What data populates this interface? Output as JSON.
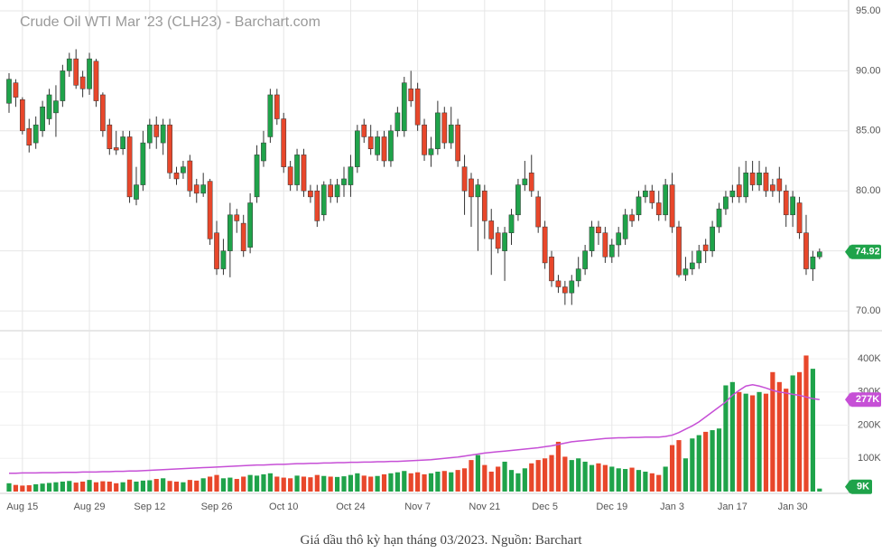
{
  "chart_data": {
    "type": "candlestick",
    "title": "Crude Oil WTI Mar '23 (CLH23) - Barchart.com",
    "categories": [
      null,
      null,
      "Aug 15",
      null,
      null,
      null,
      null,
      null,
      null,
      null,
      null,
      null,
      "Aug 29",
      null,
      null,
      null,
      null,
      null,
      null,
      null,
      null,
      "Sep 12",
      null,
      null,
      null,
      null,
      null,
      null,
      null,
      null,
      null,
      "Sep 26",
      null,
      null,
      null,
      null,
      null,
      null,
      null,
      null,
      null,
      "Oct 10",
      null,
      null,
      null,
      null,
      null,
      null,
      null,
      null,
      null,
      "Oct 24",
      null,
      null,
      null,
      null,
      null,
      null,
      null,
      null,
      null,
      "Nov 7",
      null,
      null,
      null,
      null,
      null,
      null,
      null,
      null,
      null,
      "Nov 21",
      null,
      null,
      null,
      null,
      null,
      null,
      null,
      null,
      "Dec 5",
      null,
      null,
      null,
      null,
      null,
      null,
      null,
      null,
      null,
      "Dec 19",
      null,
      null,
      null,
      null,
      null,
      null,
      null,
      null,
      "Jan 3",
      null,
      null,
      null,
      null,
      null,
      null,
      null,
      null,
      "Jan 17",
      null,
      null,
      null,
      null,
      null,
      null,
      null,
      null,
      "Jan 30",
      null,
      null,
      null,
      null
    ],
    "open": [
      87.3,
      89.0,
      87.6,
      85.2,
      84.0,
      85.0,
      86.0,
      86.5,
      87.5,
      90.0,
      91.0,
      89.5,
      88.5,
      90.8,
      88.0,
      85.5,
      83.6,
      83.5,
      84.5,
      79.3,
      80.5,
      84.0,
      85.5,
      84.0,
      85.5,
      81.5,
      81.5,
      82.5,
      80.5,
      79.8,
      80.8,
      76.5,
      73.5,
      75.0,
      78.0,
      77.3,
      75.3,
      79.5,
      82.5,
      84.5,
      88.0,
      86.0,
      82.0,
      80.5,
      83.0,
      80.0,
      80.0,
      78.0,
      80.5,
      79.5,
      80.5,
      80.5,
      82.0,
      85.5,
      84.5,
      83.0,
      84.5,
      82.5,
      85.0,
      85.0,
      88.5,
      88.5,
      85.5,
      83.0,
      83.5,
      86.5,
      84.0,
      85.5,
      82.0,
      81.0,
      79.5,
      80.0,
      77.5,
      76.5,
      75.0,
      76.5,
      78.0,
      80.5,
      81.5,
      79.5,
      77.0,
      74.5,
      72.5,
      72.0,
      71.5,
      72.5,
      73.5,
      75.0,
      77.0,
      76.5,
      74.5,
      75.5,
      76.0,
      78.0,
      78.0,
      79.5,
      80.0,
      79.0,
      78.0,
      80.5,
      77.0,
      73.0,
      73.5,
      74.0,
      75.5,
      75.0,
      77.0,
      78.5,
      79.5,
      80.5,
      79.5,
      81.5,
      80.5,
      81.5,
      80.5,
      81.0,
      80.0,
      78.0,
      79.0,
      76.5,
      73.5,
      74.5
    ],
    "high": [
      89.8,
      89.3,
      87.8,
      86.0,
      86.2,
      87.5,
      88.5,
      88.8,
      90.5,
      91.5,
      91.8,
      90.0,
      91.5,
      91.0,
      88.2,
      86.0,
      85.0,
      85.0,
      85.0,
      82.0,
      85.0,
      86.0,
      86.2,
      86.0,
      86.0,
      82.0,
      82.5,
      83.0,
      81.0,
      81.5,
      81.0,
      77.5,
      76.0,
      79.0,
      78.5,
      78.0,
      79.8,
      83.8,
      85.0,
      88.5,
      88.5,
      86.5,
      82.5,
      83.5,
      83.5,
      80.5,
      80.5,
      80.8,
      81.0,
      81.0,
      82.0,
      83.0,
      85.5,
      86.0,
      85.5,
      85.0,
      85.0,
      85.5,
      87.0,
      89.5,
      90.0,
      89.0,
      86.0,
      84.5,
      87.5,
      87.0,
      87.0,
      86.0,
      83.0,
      81.5,
      81.0,
      80.5,
      78.5,
      77.0,
      77.0,
      78.5,
      81.0,
      82.5,
      83.0,
      80.0,
      77.5,
      75.0,
      73.0,
      72.5,
      73.0,
      74.5,
      75.5,
      77.5,
      77.5,
      77.0,
      76.0,
      77.0,
      78.5,
      78.5,
      80.0,
      80.5,
      80.5,
      80.0,
      81.0,
      81.5,
      77.5,
      74.5,
      75.0,
      75.5,
      76.0,
      77.5,
      79.0,
      80.0,
      80.5,
      82.0,
      82.5,
      82.5,
      82.5,
      82.0,
      81.0,
      82.0,
      80.5,
      80.0,
      79.5,
      78.0,
      75.0,
      75.2
    ],
    "low": [
      86.5,
      87.0,
      84.7,
      83.2,
      83.5,
      84.5,
      85.5,
      84.5,
      87.0,
      89.5,
      88.5,
      87.8,
      88.0,
      87.0,
      84.5,
      83.0,
      83.0,
      83.0,
      79.0,
      78.8,
      80.0,
      83.5,
      83.5,
      83.0,
      81.0,
      80.5,
      81.0,
      79.5,
      79.0,
      79.5,
      75.5,
      73.0,
      73.0,
      72.8,
      76.5,
      74.5,
      74.8,
      79.0,
      82.0,
      84.0,
      85.5,
      81.5,
      80.0,
      80.0,
      79.5,
      79.0,
      77.0,
      77.5,
      79.0,
      79.0,
      79.5,
      79.5,
      81.5,
      84.0,
      83.0,
      82.5,
      82.0,
      82.0,
      84.5,
      84.5,
      87.0,
      85.0,
      82.5,
      82.0,
      83.0,
      83.5,
      83.5,
      82.0,
      78.0,
      77.0,
      75.0,
      76.0,
      73.0,
      74.8,
      72.5,
      75.5,
      77.5,
      80.0,
      79.5,
      76.5,
      73.5,
      72.0,
      71.5,
      70.5,
      70.5,
      72.0,
      73.0,
      74.5,
      75.5,
      74.0,
      74.0,
      74.5,
      75.5,
      77.0,
      77.5,
      79.0,
      78.5,
      77.5,
      77.5,
      76.5,
      72.8,
      72.5,
      73.0,
      73.5,
      74.0,
      74.5,
      76.5,
      78.0,
      79.0,
      79.0,
      79.0,
      80.0,
      80.0,
      79.5,
      79.5,
      79.0,
      77.0,
      77.0,
      76.0,
      73.0,
      72.5,
      74.3
    ],
    "close": [
      89.3,
      87.8,
      85.0,
      83.8,
      85.5,
      87.0,
      88.0,
      87.5,
      90.0,
      91.0,
      88.8,
      88.5,
      91.0,
      87.5,
      85.0,
      83.5,
      83.4,
      84.5,
      79.5,
      80.5,
      84.0,
      85.5,
      84.5,
      85.5,
      81.5,
      81.0,
      82.0,
      80.0,
      79.8,
      80.5,
      76.0,
      73.5,
      75.0,
      78.0,
      77.5,
      75.0,
      79.0,
      83.0,
      84.0,
      88.0,
      86.0,
      82.0,
      80.5,
      83.0,
      80.0,
      79.5,
      77.5,
      80.5,
      79.5,
      80.5,
      81.0,
      82.0,
      85.0,
      84.5,
      83.5,
      84.5,
      82.5,
      85.0,
      86.5,
      89.0,
      87.5,
      85.5,
      83.0,
      83.5,
      86.5,
      84.0,
      85.5,
      82.5,
      80.0,
      79.5,
      80.5,
      77.5,
      76.0,
      75.2,
      76.5,
      78.0,
      80.5,
      81.0,
      80.0,
      77.0,
      74.0,
      72.5,
      72.0,
      71.5,
      72.5,
      73.5,
      75.0,
      77.0,
      76.5,
      74.5,
      75.5,
      76.5,
      78.0,
      77.5,
      79.5,
      80.0,
      79.0,
      78.0,
      80.5,
      77.0,
      73.0,
      73.5,
      74.0,
      75.0,
      75.0,
      77.0,
      78.5,
      79.5,
      80.0,
      79.5,
      81.5,
      80.5,
      81.5,
      80.0,
      80.0,
      80.0,
      78.0,
      79.5,
      76.5,
      73.5,
      74.5,
      74.92
    ],
    "up_color": "#1fa34a",
    "down_color": "#e8472b",
    "ylim": [
      68.5,
      95.75
    ],
    "yticks": [
      {
        "value": 70,
        "label": "70.00"
      },
      {
        "value": 75,
        "label": "75.00"
      },
      {
        "value": 80,
        "label": "80.00"
      },
      {
        "value": 85,
        "label": "85.00"
      },
      {
        "value": 90,
        "label": "90.00"
      },
      {
        "value": 95,
        "label": "95.00"
      }
    ],
    "grid": true,
    "volume": {
      "type": "bar",
      "values": [
        25,
        20,
        18,
        19,
        22,
        24,
        26,
        28,
        30,
        32,
        27,
        30,
        35,
        28,
        31,
        30,
        25,
        28,
        36,
        30,
        33,
        34,
        38,
        40,
        32,
        30,
        28,
        35,
        33,
        40,
        45,
        50,
        40,
        42,
        38,
        45,
        50,
        48,
        52,
        55,
        45,
        42,
        40,
        48,
        45,
        43,
        50,
        47,
        45,
        44,
        46,
        50,
        55,
        48,
        45,
        47,
        52,
        55,
        58,
        62,
        55,
        58,
        52,
        55,
        60,
        62,
        58,
        65,
        70,
        95,
        110,
        80,
        60,
        75,
        90,
        65,
        55,
        70,
        85,
        95,
        100,
        110,
        150,
        105,
        95,
        100,
        90,
        80,
        85,
        80,
        75,
        70,
        68,
        72,
        65,
        60,
        55,
        50,
        75,
        140,
        155,
        100,
        160,
        170,
        180,
        185,
        190,
        320,
        330,
        300,
        295,
        290,
        300,
        295,
        360,
        330,
        310,
        350,
        360,
        410,
        370,
        9
      ],
      "value_labels": [
        null,
        null,
        null,
        null,
        null,
        null,
        null,
        null,
        null,
        null,
        null,
        null,
        null,
        null,
        null,
        null,
        null,
        null,
        null,
        null,
        null,
        null,
        null,
        null,
        null,
        null,
        null,
        null,
        null,
        null,
        null,
        null,
        null,
        null,
        null,
        null,
        null,
        null,
        null,
        null,
        null,
        null,
        null,
        null,
        null,
        null,
        null,
        null,
        null,
        null,
        null,
        null,
        null,
        null,
        null,
        null,
        null,
        null,
        null,
        null,
        null,
        null,
        null,
        null,
        null,
        null,
        null,
        null,
        null,
        null,
        null,
        null,
        null,
        null,
        null,
        null,
        null,
        null,
        null,
        null,
        null,
        null,
        null,
        null,
        null,
        null,
        null,
        null,
        null,
        null,
        null,
        null,
        null,
        null,
        null,
        null,
        null,
        null,
        null,
        null,
        null,
        null,
        null,
        null,
        null,
        null,
        null,
        null,
        null,
        null,
        null,
        null,
        null,
        null,
        null,
        null,
        null,
        null,
        null,
        null,
        null,
        "9K"
      ],
      "ylim": [
        0,
        482
      ],
      "yticks": [
        {
          "value": 100,
          "label": "100K"
        },
        {
          "value": 200,
          "label": "200K"
        },
        {
          "value": 300,
          "label": "300K"
        },
        {
          "value": 400,
          "label": "400K"
        }
      ],
      "ma": {
        "color": "#c64fd6",
        "values": [
          55,
          55,
          56,
          56,
          56,
          57,
          57,
          57,
          58,
          58,
          58,
          59,
          59,
          59,
          60,
          60,
          61,
          61,
          62,
          62,
          63,
          64,
          65,
          66,
          67,
          68,
          69,
          70,
          71,
          72,
          73,
          74,
          75,
          76,
          77,
          78,
          79,
          80,
          80,
          81,
          82,
          82,
          83,
          84,
          84,
          85,
          85,
          86,
          86,
          87,
          87,
          88,
          88,
          89,
          89,
          90,
          90,
          91,
          91,
          92,
          93,
          94,
          95,
          96,
          98,
          100,
          102,
          104,
          107,
          110,
          113,
          116,
          118,
          120,
          122,
          124,
          126,
          128,
          130,
          132,
          135,
          138,
          142,
          146,
          150,
          152,
          154,
          156,
          158,
          160,
          161,
          162,
          162,
          163,
          163,
          164,
          164,
          164,
          166,
          170,
          178,
          188,
          198,
          210,
          225,
          240,
          255,
          270,
          290,
          305,
          318,
          322,
          318,
          312,
          305,
          300,
          297,
          293,
          290,
          285,
          280,
          277
        ],
        "value_labels": [
          null,
          null,
          null,
          null,
          null,
          null,
          null,
          null,
          null,
          null,
          null,
          null,
          null,
          null,
          null,
          null,
          null,
          null,
          null,
          null,
          null,
          null,
          null,
          null,
          null,
          null,
          null,
          null,
          null,
          null,
          null,
          null,
          null,
          null,
          null,
          null,
          null,
          null,
          null,
          null,
          null,
          null,
          null,
          null,
          null,
          null,
          null,
          null,
          null,
          null,
          null,
          null,
          null,
          null,
          null,
          null,
          null,
          null,
          null,
          null,
          null,
          null,
          null,
          null,
          null,
          null,
          null,
          null,
          null,
          null,
          null,
          null,
          null,
          null,
          null,
          null,
          null,
          null,
          null,
          null,
          null,
          null,
          null,
          null,
          null,
          null,
          null,
          null,
          null,
          null,
          null,
          null,
          null,
          null,
          null,
          null,
          null,
          null,
          null,
          null,
          null,
          null,
          null,
          null,
          null,
          null,
          null,
          null,
          null,
          null,
          null,
          null,
          null,
          null,
          null,
          null,
          null,
          null,
          null,
          null,
          null,
          "277K"
        ]
      }
    }
  },
  "caption": "Giá dầu thô kỳ hạn tháng 03/2023. Nguồn: Barchart"
}
